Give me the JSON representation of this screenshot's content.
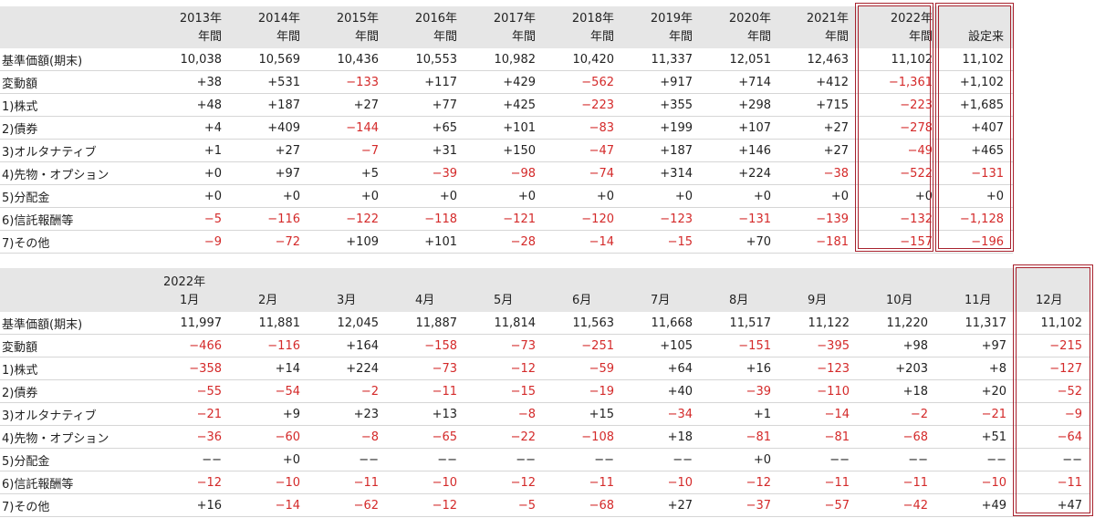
{
  "annual": {
    "headers": [
      {
        "line1": "2013年",
        "line2": "年間"
      },
      {
        "line1": "2014年",
        "line2": "年間"
      },
      {
        "line1": "2015年",
        "line2": "年間"
      },
      {
        "line1": "2016年",
        "line2": "年間"
      },
      {
        "line1": "2017年",
        "line2": "年間"
      },
      {
        "line1": "2018年",
        "line2": "年間"
      },
      {
        "line1": "2019年",
        "line2": "年間"
      },
      {
        "line1": "2020年",
        "line2": "年間"
      },
      {
        "line1": "2021年",
        "line2": "年間"
      },
      {
        "line1": "2022年",
        "line2": "年間"
      },
      {
        "line1": "",
        "line2": "設定来"
      }
    ],
    "rows": [
      {
        "label": "基準価額(期末)",
        "values": [
          "10,038",
          "10,569",
          "10,436",
          "10,553",
          "10,982",
          "10,420",
          "11,337",
          "12,051",
          "12,463",
          "11,102",
          "11,102"
        ]
      },
      {
        "label": "変動額",
        "values": [
          "+38",
          "+531",
          "−133",
          "+117",
          "+429",
          "−562",
          "+917",
          "+714",
          "+412",
          "−1,361",
          "+1,102"
        ]
      },
      {
        "label": "1)株式",
        "values": [
          "+48",
          "+187",
          "+27",
          "+77",
          "+425",
          "−223",
          "+355",
          "+298",
          "+715",
          "−223",
          "+1,685"
        ]
      },
      {
        "label": "2)債券",
        "values": [
          "+4",
          "+409",
          "−144",
          "+65",
          "+101",
          "−83",
          "+199",
          "+107",
          "+27",
          "−278",
          "+407"
        ]
      },
      {
        "label": "3)オルタナティブ",
        "values": [
          "+1",
          "+27",
          "−7",
          "+31",
          "+150",
          "−47",
          "+187",
          "+146",
          "+27",
          "−49",
          "+465"
        ]
      },
      {
        "label": "4)先物・オプション",
        "values": [
          "+0",
          "+97",
          "+5",
          "−39",
          "−98",
          "−74",
          "+314",
          "+224",
          "−38",
          "−522",
          "−131"
        ]
      },
      {
        "label": "5)分配金",
        "values": [
          "+0",
          "+0",
          "+0",
          "+0",
          "+0",
          "+0",
          "+0",
          "+0",
          "+0",
          "+0",
          "+0"
        ]
      },
      {
        "label": "6)信託報酬等",
        "values": [
          "−5",
          "−116",
          "−122",
          "−118",
          "−121",
          "−120",
          "−123",
          "−131",
          "−139",
          "−132",
          "−1,128"
        ]
      },
      {
        "label": "7)その他",
        "values": [
          "−9",
          "−72",
          "+109",
          "+101",
          "−28",
          "−14",
          "−15",
          "+70",
          "−181",
          "−157",
          "−196"
        ]
      }
    ]
  },
  "monthly": {
    "year_label": "2022年",
    "headers": [
      "1月",
      "2月",
      "3月",
      "4月",
      "5月",
      "6月",
      "7月",
      "8月",
      "9月",
      "10月",
      "11月",
      "12月"
    ],
    "rows": [
      {
        "label": "基準価額(期末)",
        "values": [
          "11,997",
          "11,881",
          "12,045",
          "11,887",
          "11,814",
          "11,563",
          "11,668",
          "11,517",
          "11,122",
          "11,220",
          "11,317",
          "11,102"
        ]
      },
      {
        "label": "変動額",
        "values": [
          "−466",
          "−116",
          "+164",
          "−158",
          "−73",
          "−251",
          "+105",
          "−151",
          "−395",
          "+98",
          "+97",
          "−215"
        ]
      },
      {
        "label": "1)株式",
        "values": [
          "−358",
          "+14",
          "+224",
          "−73",
          "−12",
          "−59",
          "+64",
          "+16",
          "−123",
          "+203",
          "+8",
          "−127"
        ]
      },
      {
        "label": "2)債券",
        "values": [
          "−55",
          "−54",
          "−2",
          "−11",
          "−15",
          "−19",
          "+40",
          "−39",
          "−110",
          "+18",
          "+20",
          "−52"
        ]
      },
      {
        "label": "3)オルタナティブ",
        "values": [
          "−21",
          "+9",
          "+23",
          "+13",
          "−8",
          "+15",
          "−34",
          "+1",
          "−14",
          "−2",
          "−21",
          "−9"
        ]
      },
      {
        "label": "4)先物・オプション",
        "values": [
          "−36",
          "−60",
          "−8",
          "−65",
          "−22",
          "−108",
          "+18",
          "−81",
          "−81",
          "−68",
          "+51",
          "−64"
        ]
      },
      {
        "label": "5)分配金",
        "values": [
          "−−",
          "+0",
          "−−",
          "−−",
          "−−",
          "−−",
          "−−",
          "+0",
          "−−",
          "−−",
          "−−",
          "−−"
        ]
      },
      {
        "label": "6)信託報酬等",
        "values": [
          "−12",
          "−10",
          "−11",
          "−10",
          "−12",
          "−11",
          "−10",
          "−12",
          "−11",
          "−11",
          "−10",
          "−11"
        ]
      },
      {
        "label": "7)その他",
        "values": [
          "+16",
          "−14",
          "−62",
          "−12",
          "−5",
          "−68",
          "+27",
          "−37",
          "−57",
          "−42",
          "+49",
          "+47"
        ]
      }
    ]
  }
}
